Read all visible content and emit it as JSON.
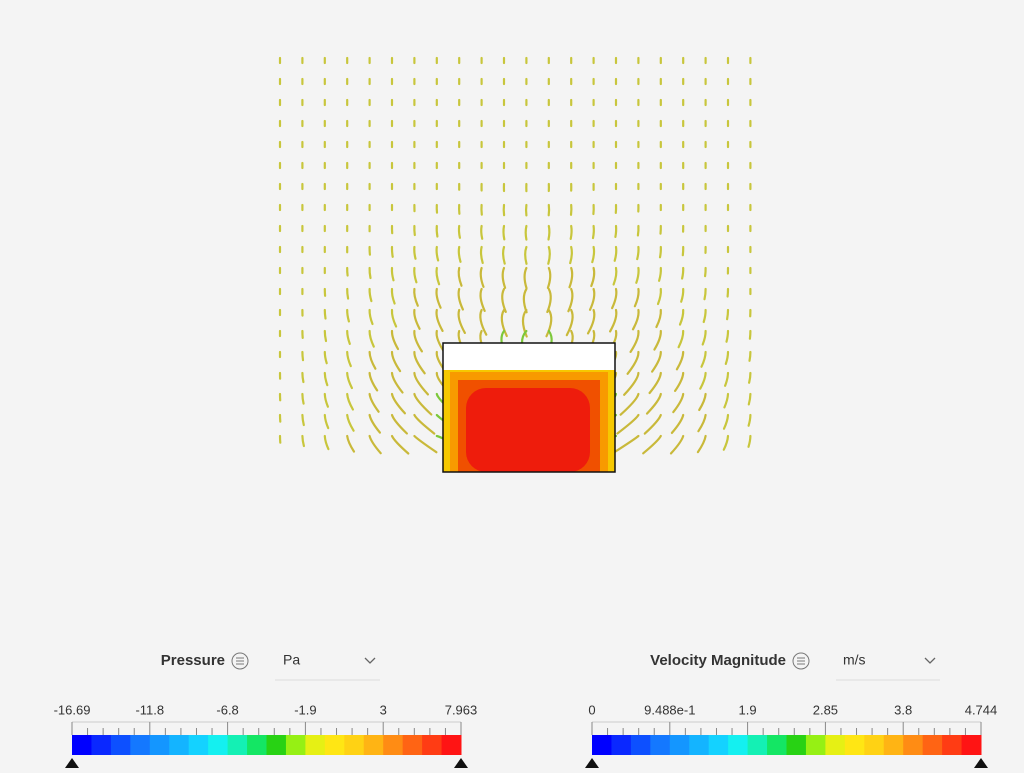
{
  "legends": [
    {
      "title": "Pressure",
      "unit": "Pa",
      "ticks": [
        "-16.69",
        "-11.8",
        "-6.8",
        "-1.9",
        "3",
        "7.963"
      ]
    },
    {
      "title": "Velocity Magnitude",
      "unit": "m/s",
      "ticks": [
        "0",
        "9.488e-1",
        "1.9",
        "2.85",
        "3.8",
        "4.744"
      ]
    }
  ]
}
